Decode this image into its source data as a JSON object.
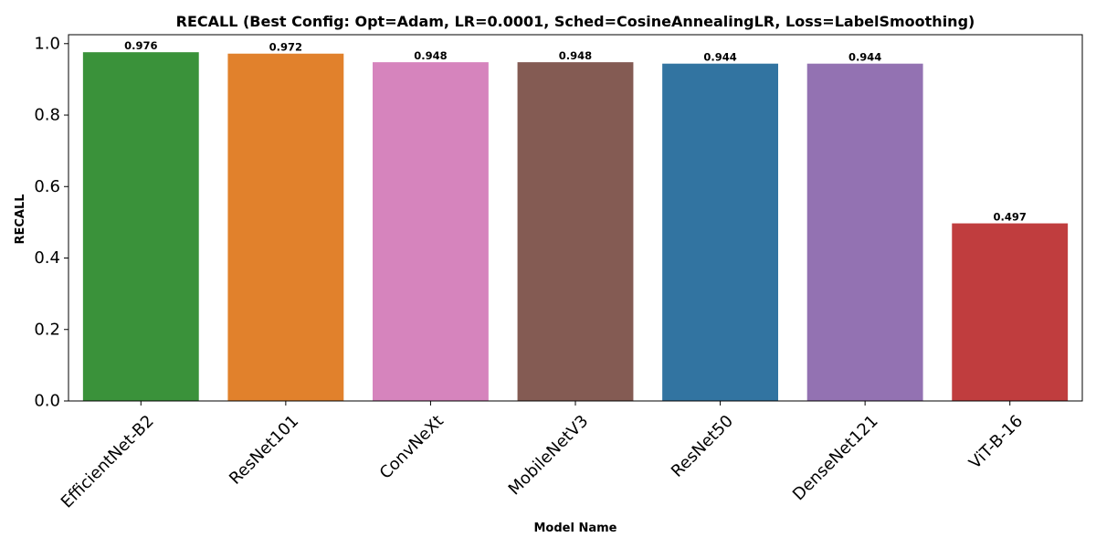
{
  "chart_data": {
    "type": "bar",
    "title": "RECALL (Best Config: Opt=Adam, LR=0.0001, Sched=CosineAnnealingLR, Loss=LabelSmoothing)",
    "xlabel": "Model Name",
    "ylabel": "RECALL",
    "categories": [
      "EfficientNet-B2",
      "ResNet101",
      "ConvNeXt",
      "MobileNetV3",
      "ResNet50",
      "DenseNet121",
      "ViT-B-16"
    ],
    "values": [
      0.976,
      0.972,
      0.948,
      0.948,
      0.944,
      0.944,
      0.497
    ],
    "value_labels": [
      "0.976",
      "0.972",
      "0.948",
      "0.948",
      "0.944",
      "0.944",
      "0.497"
    ],
    "colors": [
      "#3a923a",
      "#e1812c",
      "#d684bd",
      "#845b53",
      "#3274a1",
      "#9372b2",
      "#c03d3e"
    ],
    "ylim": [
      0,
      1.025
    ],
    "yticks": [
      0.0,
      0.2,
      0.4,
      0.6,
      0.8,
      1.0
    ],
    "ytick_labels": [
      "0.0",
      "0.2",
      "0.4",
      "0.6",
      "0.8",
      "1.0"
    ],
    "grid": false,
    "legend": "none"
  }
}
